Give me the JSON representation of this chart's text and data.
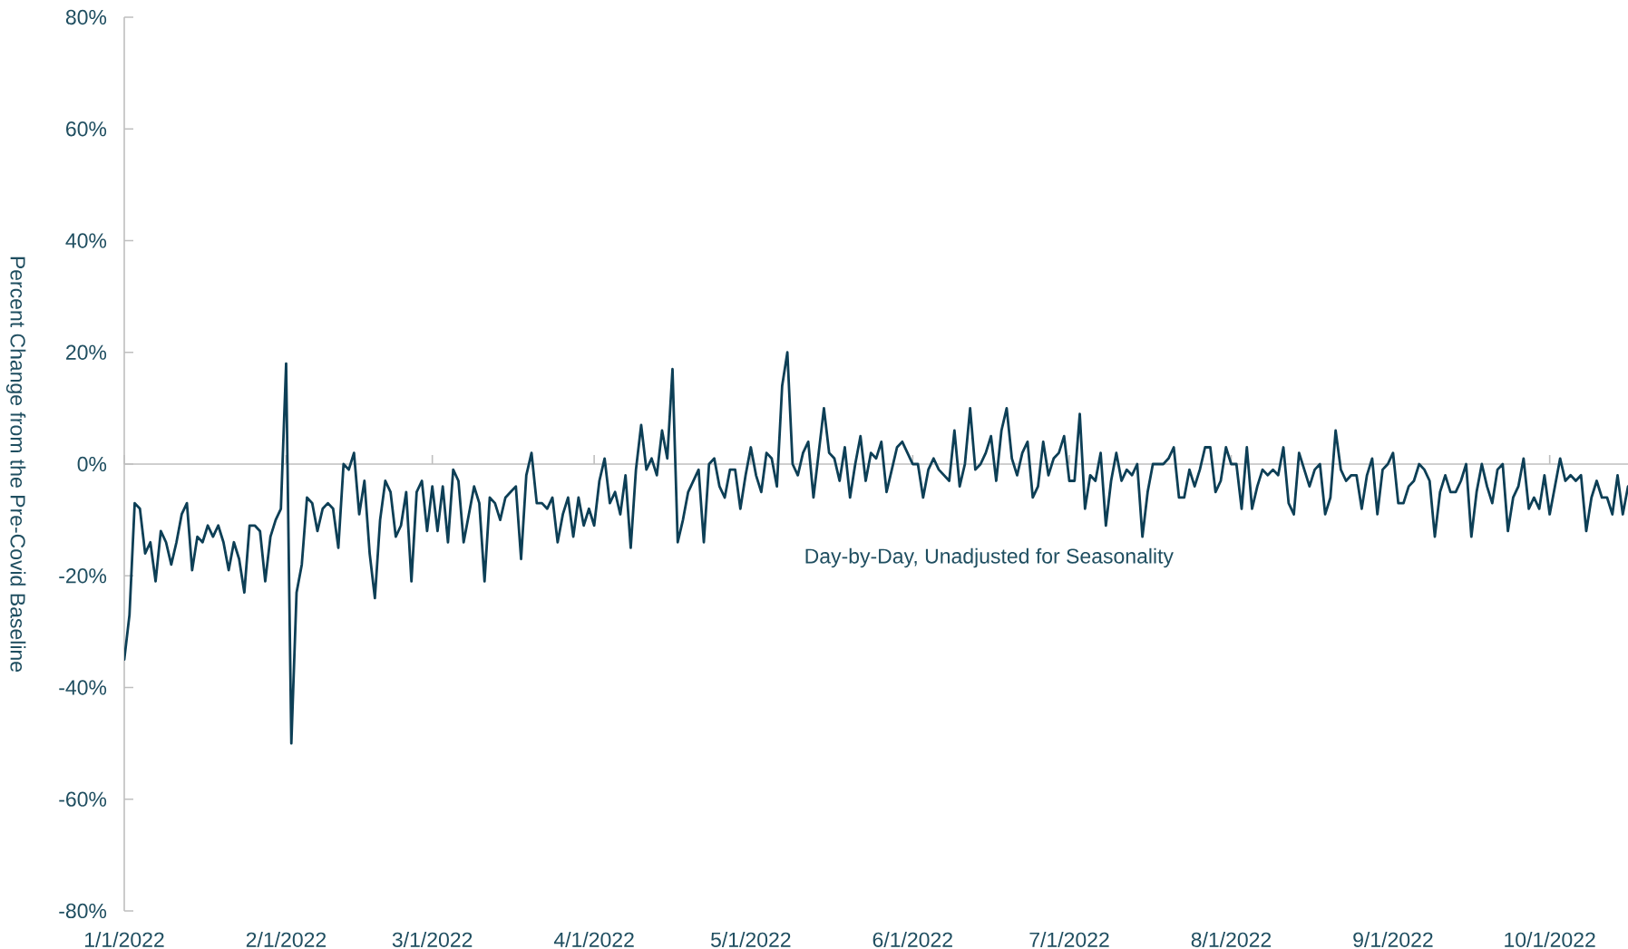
{
  "chart_data": {
    "type": "line",
    "ylabel": "Percent Change from the Pre-Covid Baseline",
    "annotations": [
      "Day-by-Day, Unadjusted for Seasonality"
    ],
    "color": "#0d3f56",
    "xlim": [
      "2022-01-01",
      "2022-10-16"
    ],
    "xticks": [
      {
        "value": "2022-01-01",
        "label": "1/1/2022"
      },
      {
        "value": "2022-02-01",
        "label": "2/1/2022"
      },
      {
        "value": "2022-03-01",
        "label": "3/1/2022"
      },
      {
        "value": "2022-04-01",
        "label": "4/1/2022"
      },
      {
        "value": "2022-05-01",
        "label": "5/1/2022"
      },
      {
        "value": "2022-06-01",
        "label": "6/1/2022"
      },
      {
        "value": "2022-07-01",
        "label": "7/1/2022"
      },
      {
        "value": "2022-08-01",
        "label": "8/1/2022"
      },
      {
        "value": "2022-09-01",
        "label": "9/1/2022"
      },
      {
        "value": "2022-10-01",
        "label": "10/1/2022"
      }
    ],
    "ylim": [
      -80,
      80
    ],
    "yticks": [
      {
        "value": -80,
        "label": "-80%"
      },
      {
        "value": -60,
        "label": "-60%"
      },
      {
        "value": -40,
        "label": "-40%"
      },
      {
        "value": -20,
        "label": "-20%"
      },
      {
        "value": 0,
        "label": "0%"
      },
      {
        "value": 20,
        "label": "20%"
      },
      {
        "value": 40,
        "label": "40%"
      },
      {
        "value": 60,
        "label": "60%"
      },
      {
        "value": 80,
        "label": "80%"
      }
    ],
    "x": [
      "2022-01-01",
      "2022-01-02",
      "2022-01-03",
      "2022-01-04",
      "2022-01-05",
      "2022-01-06",
      "2022-01-07",
      "2022-01-08",
      "2022-01-09",
      "2022-01-10",
      "2022-01-11",
      "2022-01-12",
      "2022-01-13",
      "2022-01-14",
      "2022-01-15",
      "2022-01-16",
      "2022-01-17",
      "2022-01-18",
      "2022-01-19",
      "2022-01-20",
      "2022-01-21",
      "2022-01-22",
      "2022-01-23",
      "2022-01-24",
      "2022-01-25",
      "2022-01-26",
      "2022-01-27",
      "2022-01-28",
      "2022-01-29",
      "2022-01-30",
      "2022-01-31",
      "2022-02-01",
      "2022-02-02",
      "2022-02-03",
      "2022-02-04",
      "2022-02-05",
      "2022-02-06",
      "2022-02-07",
      "2022-02-08",
      "2022-02-09",
      "2022-02-10",
      "2022-02-11",
      "2022-02-12",
      "2022-02-13",
      "2022-02-14",
      "2022-02-15",
      "2022-02-16",
      "2022-02-17",
      "2022-02-18",
      "2022-02-19",
      "2022-02-20",
      "2022-02-21",
      "2022-02-22",
      "2022-02-23",
      "2022-02-24",
      "2022-02-25",
      "2022-02-26",
      "2022-02-27",
      "2022-02-28",
      "2022-03-01",
      "2022-03-02",
      "2022-03-03",
      "2022-03-04",
      "2022-03-05",
      "2022-03-06",
      "2022-03-07",
      "2022-03-08",
      "2022-03-09",
      "2022-03-10",
      "2022-03-11",
      "2022-03-12",
      "2022-03-13",
      "2022-03-14",
      "2022-03-15",
      "2022-03-16",
      "2022-03-17",
      "2022-03-18",
      "2022-03-19",
      "2022-03-20",
      "2022-03-21",
      "2022-03-22",
      "2022-03-23",
      "2022-03-24",
      "2022-03-25",
      "2022-03-26",
      "2022-03-27",
      "2022-03-28",
      "2022-03-29",
      "2022-03-30",
      "2022-03-31",
      "2022-04-01",
      "2022-04-02",
      "2022-04-03",
      "2022-04-04",
      "2022-04-05",
      "2022-04-06",
      "2022-04-07",
      "2022-04-08",
      "2022-04-09",
      "2022-04-10",
      "2022-04-11",
      "2022-04-12",
      "2022-04-13",
      "2022-04-14",
      "2022-04-15",
      "2022-04-16",
      "2022-04-17",
      "2022-04-18",
      "2022-04-19",
      "2022-04-20",
      "2022-04-21",
      "2022-04-22",
      "2022-04-23",
      "2022-04-24",
      "2022-04-25",
      "2022-04-26",
      "2022-04-27",
      "2022-04-28",
      "2022-04-29",
      "2022-04-30",
      "2022-05-01",
      "2022-05-02",
      "2022-05-03",
      "2022-05-04",
      "2022-05-05",
      "2022-05-06",
      "2022-05-07",
      "2022-05-08",
      "2022-05-09",
      "2022-05-10",
      "2022-05-11",
      "2022-05-12",
      "2022-05-13",
      "2022-05-14",
      "2022-05-15",
      "2022-05-16",
      "2022-05-17",
      "2022-05-18",
      "2022-05-19",
      "2022-05-20",
      "2022-05-21",
      "2022-05-22",
      "2022-05-23",
      "2022-05-24",
      "2022-05-25",
      "2022-05-26",
      "2022-05-27",
      "2022-05-28",
      "2022-05-29",
      "2022-05-30",
      "2022-05-31",
      "2022-06-01",
      "2022-06-02",
      "2022-06-03",
      "2022-06-04",
      "2022-06-05",
      "2022-06-06",
      "2022-06-07",
      "2022-06-08",
      "2022-06-09",
      "2022-06-10",
      "2022-06-11",
      "2022-06-12",
      "2022-06-13",
      "2022-06-14",
      "2022-06-15",
      "2022-06-16",
      "2022-06-17",
      "2022-06-18",
      "2022-06-19",
      "2022-06-20",
      "2022-06-21",
      "2022-06-22",
      "2022-06-23",
      "2022-06-24",
      "2022-06-25",
      "2022-06-26",
      "2022-06-27",
      "2022-06-28",
      "2022-06-29",
      "2022-06-30",
      "2022-07-01",
      "2022-07-02",
      "2022-07-03",
      "2022-07-04",
      "2022-07-05",
      "2022-07-06",
      "2022-07-07",
      "2022-07-08",
      "2022-07-09",
      "2022-07-10",
      "2022-07-11",
      "2022-07-12",
      "2022-07-13",
      "2022-07-14",
      "2022-07-15",
      "2022-07-16",
      "2022-07-17",
      "2022-07-18",
      "2022-07-19",
      "2022-07-20",
      "2022-07-21",
      "2022-07-22",
      "2022-07-23",
      "2022-07-24",
      "2022-07-25",
      "2022-07-26",
      "2022-07-27",
      "2022-07-28",
      "2022-07-29",
      "2022-07-30",
      "2022-07-31",
      "2022-08-01",
      "2022-08-02",
      "2022-08-03",
      "2022-08-04",
      "2022-08-05",
      "2022-08-06",
      "2022-08-07",
      "2022-08-08",
      "2022-08-09",
      "2022-08-10",
      "2022-08-11",
      "2022-08-12",
      "2022-08-13",
      "2022-08-14",
      "2022-08-15",
      "2022-08-16",
      "2022-08-17",
      "2022-08-18",
      "2022-08-19",
      "2022-08-20",
      "2022-08-21",
      "2022-08-22",
      "2022-08-23",
      "2022-08-24",
      "2022-08-25",
      "2022-08-26",
      "2022-08-27",
      "2022-08-28",
      "2022-08-29",
      "2022-08-30",
      "2022-08-31",
      "2022-09-01",
      "2022-09-02",
      "2022-09-03",
      "2022-09-04",
      "2022-09-05",
      "2022-09-06",
      "2022-09-07",
      "2022-09-08",
      "2022-09-09",
      "2022-09-10",
      "2022-09-11",
      "2022-09-12",
      "2022-09-13",
      "2022-09-14",
      "2022-09-15",
      "2022-09-16",
      "2022-09-17",
      "2022-09-18",
      "2022-09-19",
      "2022-09-20",
      "2022-09-21",
      "2022-09-22",
      "2022-09-23",
      "2022-09-24",
      "2022-09-25",
      "2022-09-26",
      "2022-09-27",
      "2022-09-28",
      "2022-09-29",
      "2022-09-30",
      "2022-10-01",
      "2022-10-02",
      "2022-10-03",
      "2022-10-04",
      "2022-10-05",
      "2022-10-06",
      "2022-10-07",
      "2022-10-08",
      "2022-10-09",
      "2022-10-10",
      "2022-10-11",
      "2022-10-12",
      "2022-10-13",
      "2022-10-14",
      "2022-10-15",
      "2022-10-16"
    ],
    "values": [
      -35,
      -27,
      -7,
      -8,
      -16,
      -14,
      -21,
      -12,
      -14,
      -18,
      -14,
      -9,
      -7,
      -19,
      -13,
      -14,
      -11,
      -13,
      -11,
      -14,
      -19,
      -14,
      -17,
      -23,
      -11,
      -11,
      -12,
      -21,
      -13,
      -10,
      -8,
      18,
      -50,
      -23,
      -18,
      -6,
      -7,
      -12,
      -8,
      -7,
      -8,
      -15,
      0,
      -1,
      2,
      -9,
      -3,
      -16,
      -24,
      -10,
      -3,
      -5,
      -13,
      -11,
      -5,
      -21,
      -5,
      -3,
      -12,
      -4,
      -12,
      -4,
      -14,
      -1,
      -3,
      -14,
      -9,
      -4,
      -7,
      -21,
      -6,
      -7,
      -10,
      -6,
      -5,
      -4,
      -17,
      -2,
      2,
      -7,
      -7,
      -8,
      -6,
      -14,
      -9,
      -6,
      -13,
      -6,
      -11,
      -8,
      -11,
      -3,
      1,
      -7,
      -5,
      -9,
      -2,
      -15,
      -1,
      7,
      -1,
      1,
      -2,
      6,
      1,
      17,
      -14,
      -10,
      -5,
      -3,
      -1,
      -14,
      0,
      1,
      -4,
      -6,
      -1,
      -1,
      -8,
      -2,
      3,
      -2,
      -5,
      2,
      1,
      -4,
      14,
      20,
      0,
      -2,
      2,
      4,
      -6,
      2,
      10,
      2,
      1,
      -3,
      3,
      -6,
      0,
      5,
      -3,
      2,
      1,
      4,
      -5,
      -1,
      3,
      4,
      2,
      0,
      0,
      -6,
      -1,
      1,
      -1,
      -2,
      -3,
      6,
      -4,
      0,
      10,
      -1,
      0,
      2,
      5,
      -3,
      6,
      10,
      1,
      -2,
      2,
      4,
      -6,
      -4,
      4,
      -2,
      1,
      2,
      5,
      -3,
      -3,
      9,
      -8,
      -2,
      -3,
      2,
      -11,
      -3,
      2,
      -3,
      -1,
      -2,
      0,
      -13,
      -5,
      0,
      0,
      0,
      1,
      3,
      -6,
      -6,
      -1,
      -4,
      -1,
      3,
      3,
      -5,
      -3,
      3,
      0,
      0,
      -8,
      3,
      -8,
      -4,
      -1,
      -2,
      -1,
      -2,
      3,
      -7,
      -9,
      2,
      -1,
      -4,
      -1,
      0,
      -9,
      -6,
      6,
      -1,
      -3,
      -2,
      -2,
      -8,
      -2,
      1,
      -9,
      -1,
      0,
      2,
      -7,
      -7,
      -4,
      -3,
      0,
      -1,
      -3,
      -13,
      -5,
      -2,
      -5,
      -5,
      -3,
      0,
      -13,
      -5,
      0,
      -4,
      -7,
      -1,
      0,
      -12,
      -6,
      -4,
      1,
      -8,
      -6,
      -8,
      -2,
      -9,
      -4,
      1,
      -3,
      -2,
      -3,
      -2,
      -12,
      -6,
      -3,
      -6,
      -6,
      -9,
      -2,
      -9,
      -4
    ]
  }
}
